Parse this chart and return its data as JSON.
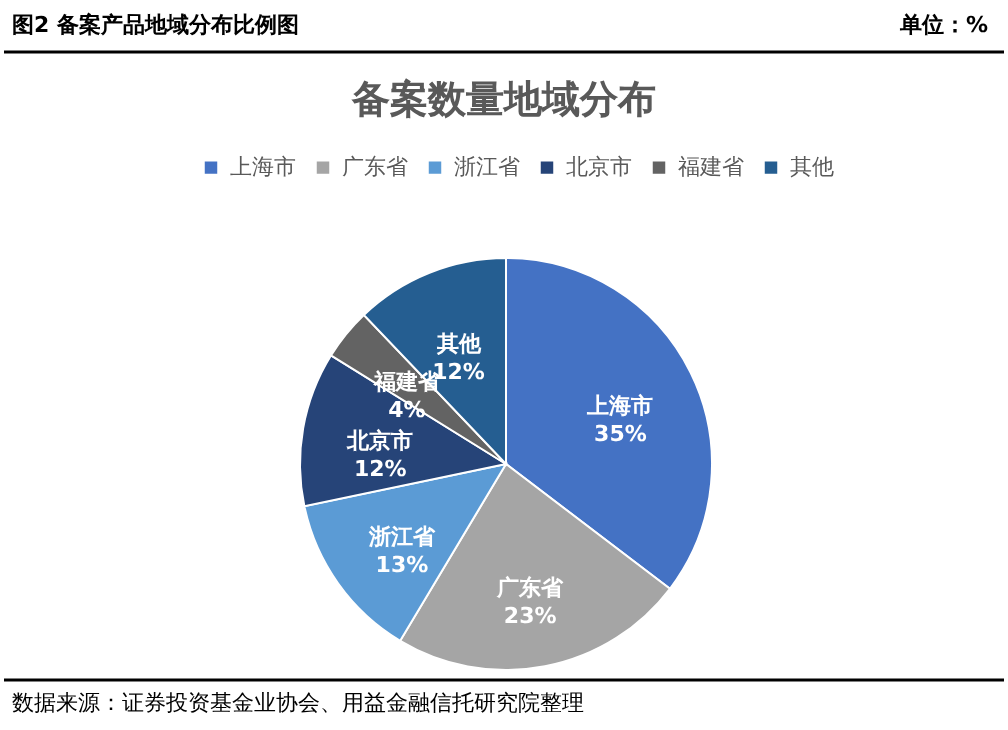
{
  "chart_data": {
    "type": "pie",
    "title": "备案数量地域分布",
    "categories": [
      "上海市",
      "广东省",
      "浙江省",
      "北京市",
      "福建省",
      "其他"
    ],
    "values": [
      35,
      23,
      13,
      12,
      4,
      12
    ],
    "value_labels": [
      "35%",
      "23%",
      "13%",
      "12%",
      "4%",
      "12%"
    ],
    "colors": [
      "#4472c4",
      "#a5a5a5",
      "#5b9bd5",
      "#264478",
      "#636363",
      "#255e91"
    ],
    "legend": "top",
    "annotations": [
      "图2  备案产品地域分布比例图",
      "单位：%",
      "数据来源：证券投资基金业协会、用益金融信托研究院整理"
    ]
  }
}
